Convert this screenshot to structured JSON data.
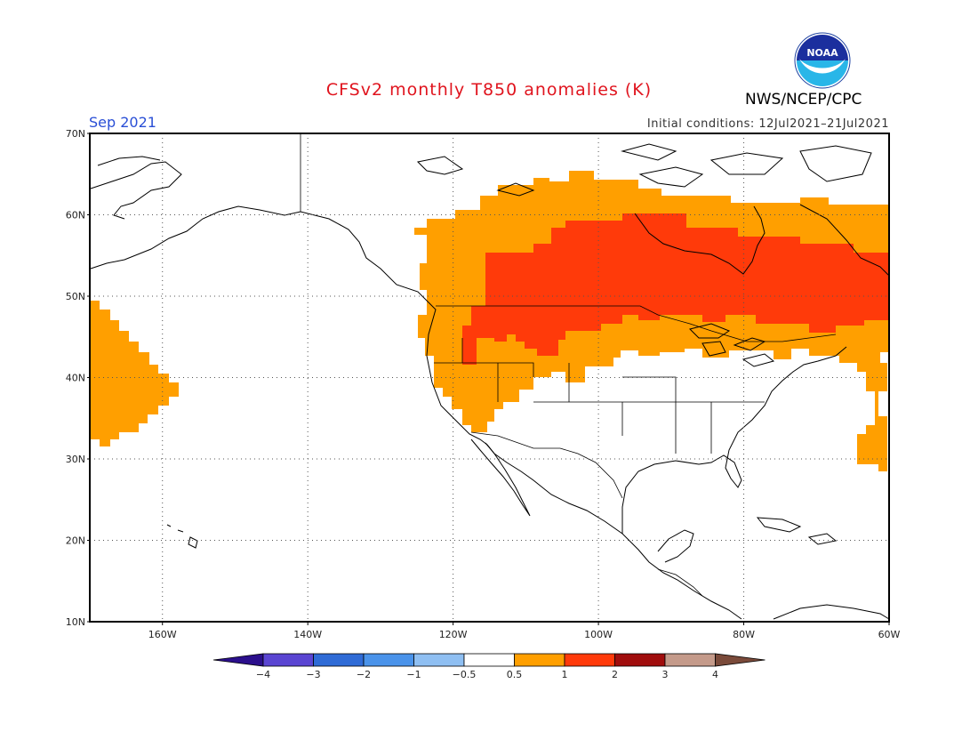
{
  "header": {
    "title": "CFSv2 monthly T850 anomalies (K)",
    "agency": "NWS/NCEP/CPC",
    "valid_month": "Sep 2021",
    "initial_conditions": "Initial conditions: 12Jul2021–21Jul2021",
    "logo_text": "NOAA"
  },
  "map": {
    "lat_labels": [
      "70N",
      "60N",
      "50N",
      "40N",
      "30N",
      "20N",
      "10N"
    ],
    "lon_labels": [
      "160W",
      "140W",
      "120W",
      "100W",
      "80W",
      "60W"
    ],
    "lat_range": [
      10,
      70
    ],
    "lon_range": [
      -170,
      -60
    ],
    "gridlines": true
  },
  "legend": {
    "tick_labels": [
      "-4",
      "-3",
      "-2",
      "-1",
      "-0.5",
      "0.5",
      "1",
      "2",
      "3",
      "4"
    ],
    "colors": [
      "#2b0f8c",
      "#5a45d2",
      "#2f6bd6",
      "#4a93ea",
      "#8fbff2",
      "#ffffff",
      "#ff9f00",
      "#ff3a0a",
      "#a00d0d",
      "#c49a8a",
      "#7a4a3a"
    ]
  }
}
